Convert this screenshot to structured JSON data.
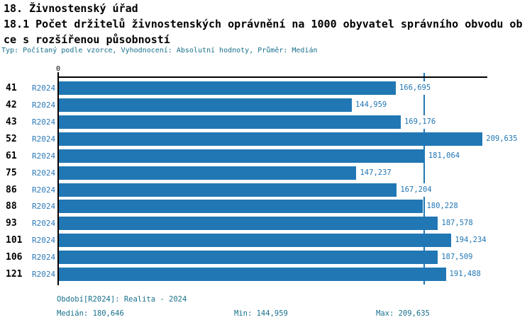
{
  "header": {
    "title": "18. Živnostenský úřad",
    "subtitle_line1": "18.1 Počet držitelů živnostenských oprávnění na 1000 obyvatel správního obvodu ob",
    "subtitle_line2": "ce s rozšířenou působností",
    "meta": "Typ: Počítaný podle vzorce, Vyhodnocení: Absolutní hodnoty, Průměr: Medián"
  },
  "axis": {
    "zero_tick": "0"
  },
  "footer": {
    "period_line": "Období[R2024]: Realita - 2024",
    "median": "Medián: 180,646",
    "min": "Min: 144,959",
    "max": "Max: 209,635"
  },
  "colors": {
    "bar": "#2177b4",
    "period_label": "#2e7ab8",
    "meta_text": "#18708c",
    "text": "#000000",
    "background": "#ffffff"
  },
  "chart_data": {
    "type": "bar",
    "orientation": "horizontal",
    "title": "18. Živnostenský úřad",
    "subtitle": "18.1 Počet držitelů živnostenských oprávnění na 1000 obyvatel správního obvodu obce s rozšířenou působností",
    "meta": "Typ: Počítaný podle vzorce, Vyhodnocení: Absolutní hodnoty, Průměr: Medián",
    "series_name": "R2024",
    "categories": [
      "41",
      "42",
      "43",
      "52",
      "61",
      "75",
      "86",
      "88",
      "93",
      "101",
      "106",
      "121"
    ],
    "values": [
      166.695,
      144.959,
      169.176,
      209.635,
      181.064,
      147.237,
      167.204,
      180.228,
      187.578,
      194.234,
      187.509,
      191.488
    ],
    "value_labels": [
      "166,695",
      "144,959",
      "169,176",
      "209,635",
      "181,064",
      "147,237",
      "167,204",
      "180,228",
      "187,578",
      "194,234",
      "187,509",
      "191,488"
    ],
    "xlabel": "",
    "ylabel": "",
    "xlim": [
      0,
      212.0
    ],
    "grid": false,
    "legend_position": "none",
    "median": 180.646,
    "min": 144.959,
    "max": 209.635,
    "median_line": true,
    "period": "Realita - 2024"
  }
}
